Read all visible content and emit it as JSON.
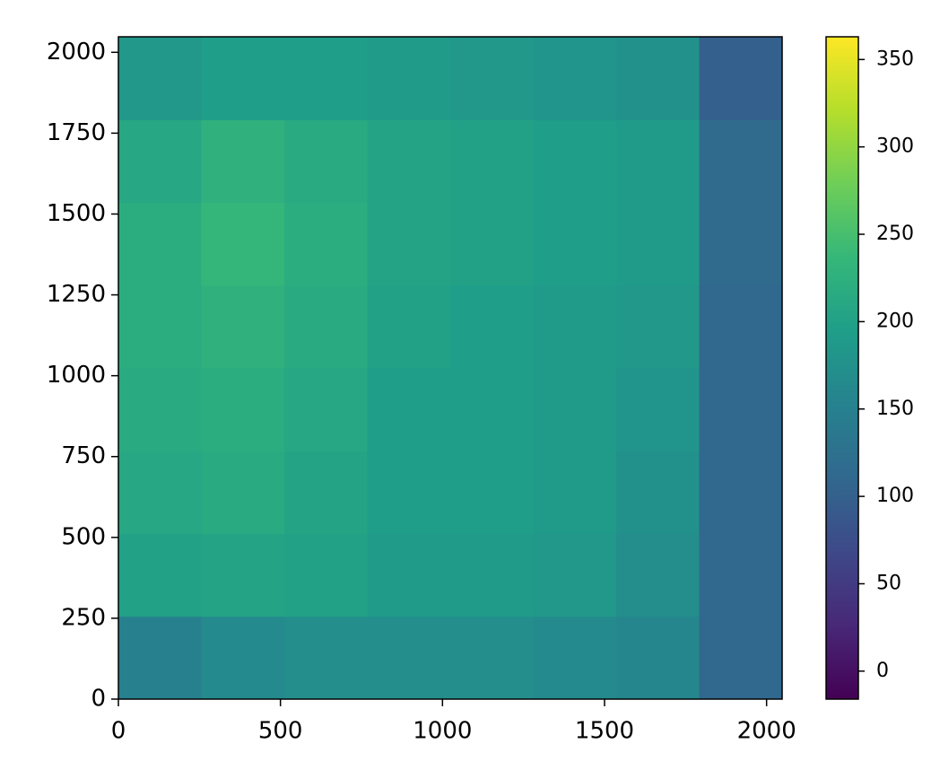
{
  "chart_data": {
    "type": "heatmap",
    "colormap": "viridis",
    "xbins": [
      0,
      256,
      512,
      768,
      1024,
      1280,
      1536,
      1792,
      2048
    ],
    "ybins": [
      0,
      256,
      512,
      768,
      1024,
      1280,
      1536,
      1792,
      2048
    ],
    "values": [
      [
        150,
        165,
        170,
        170,
        170,
        165,
        160,
        110
      ],
      [
        200,
        205,
        200,
        190,
        190,
        185,
        170,
        110
      ],
      [
        210,
        215,
        205,
        195,
        195,
        190,
        175,
        110
      ],
      [
        215,
        220,
        210,
        195,
        195,
        190,
        180,
        110
      ],
      [
        220,
        225,
        215,
        200,
        195,
        190,
        185,
        110
      ],
      [
        220,
        235,
        220,
        205,
        200,
        195,
        190,
        115
      ],
      [
        210,
        225,
        215,
        205,
        200,
        195,
        190,
        115
      ],
      [
        185,
        195,
        195,
        190,
        185,
        180,
        175,
        100
      ]
    ],
    "xlim": [
      0,
      2048
    ],
    "ylim": [
      0,
      2048
    ],
    "xticks": [
      0,
      500,
      1000,
      1500,
      2000
    ],
    "yticks": [
      0,
      250,
      500,
      750,
      1000,
      1250,
      1500,
      1750,
      2000
    ],
    "colorbar": {
      "lim": [
        -16,
        363
      ],
      "ticks": [
        0,
        50,
        100,
        150,
        200,
        250,
        300,
        350
      ]
    }
  }
}
